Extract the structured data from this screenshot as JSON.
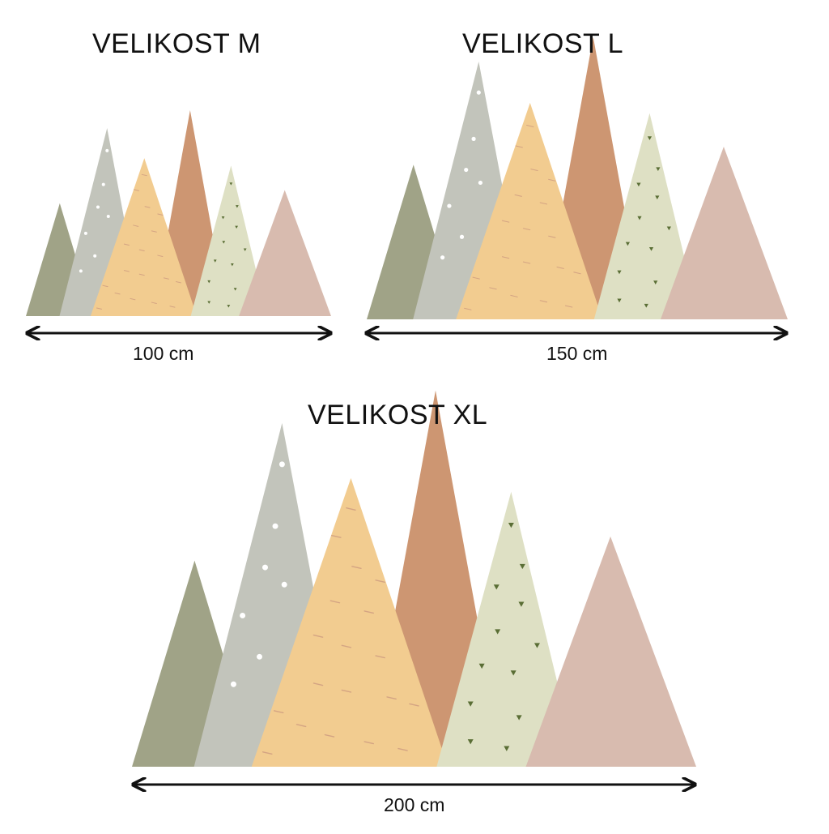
{
  "sizes": [
    {
      "id": "m",
      "title": "VELIKOST M",
      "width_label": "100 cm"
    },
    {
      "id": "l",
      "title": "VELIKOST L",
      "width_label": "150 cm"
    },
    {
      "id": "xl",
      "title": "VELIKOST XL",
      "width_label": "200 cm"
    }
  ],
  "colors": {
    "olive": "#a0a387",
    "gray": "#c2c4bb",
    "yellow": "#f2cc90",
    "terracotta": "#cd9672",
    "sage": "#dee0c4",
    "pink": "#d8bbaf",
    "white_dots": "#ffffff",
    "green_triangles": "#5a6e35",
    "dashes": "#d4a483",
    "arrow": "#111111"
  },
  "mountains": [
    {
      "name": "olive-mountain",
      "color": "olive",
      "pattern": "none"
    },
    {
      "name": "gray-mountain",
      "color": "gray",
      "pattern": "white-dots"
    },
    {
      "name": "terracotta-mountain",
      "color": "terracotta",
      "pattern": "none"
    },
    {
      "name": "yellow-mountain",
      "color": "yellow",
      "pattern": "dashes"
    },
    {
      "name": "sage-mountain",
      "color": "sage",
      "pattern": "green-triangles"
    },
    {
      "name": "pink-mountain",
      "color": "pink",
      "pattern": "none"
    }
  ]
}
